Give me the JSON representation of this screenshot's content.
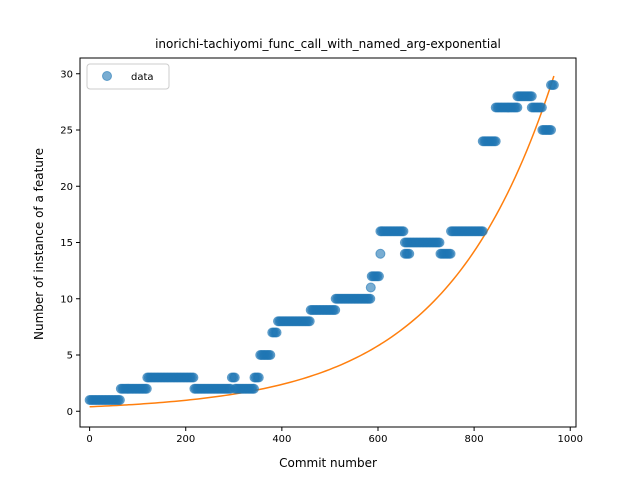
{
  "chart_data": {
    "type": "scatter",
    "title": "inorichi-tachiyomi_func_call_with_named_arg-exponential",
    "xlabel": "Commit number",
    "ylabel": "Number of instance of a feature",
    "xlim": [
      -20,
      1012
    ],
    "ylim": [
      -1.4,
      31.4
    ],
    "xticks": [
      0,
      200,
      400,
      600,
      800,
      1000
    ],
    "yticks": [
      0,
      5,
      10,
      15,
      20,
      25,
      30
    ],
    "grid": false,
    "legend": {
      "placement": "top-left",
      "entries": [
        "data"
      ]
    },
    "colors": {
      "data": "#1f77b4",
      "fit": "#ff7f0e"
    },
    "series": [
      {
        "name": "data",
        "kind": "scatter",
        "segments": [
          {
            "x_start": 0,
            "x_end": 65,
            "y": 1
          },
          {
            "x_start": 65,
            "x_end": 120,
            "y": 2
          },
          {
            "x_start": 120,
            "x_end": 218,
            "y": 3
          },
          {
            "x_start": 218,
            "x_end": 295,
            "y": 2
          },
          {
            "x_start": 296,
            "x_end": 302,
            "y": 3
          },
          {
            "x_start": 303,
            "x_end": 342,
            "y": 2
          },
          {
            "x_start": 343,
            "x_end": 352,
            "y": 3
          },
          {
            "x_start": 355,
            "x_end": 377,
            "y": 5
          },
          {
            "x_start": 380,
            "x_end": 390,
            "y": 7
          },
          {
            "x_start": 392,
            "x_end": 460,
            "y": 8
          },
          {
            "x_start": 460,
            "x_end": 512,
            "y": 9
          },
          {
            "x_start": 512,
            "x_end": 585,
            "y": 10
          },
          {
            "x_start": 587,
            "x_end": 602,
            "y": 12
          },
          {
            "x_start": 605,
            "x_end": 655,
            "y": 16
          },
          {
            "x_start": 656,
            "x_end": 665,
            "y": 14
          },
          {
            "x_start": 656,
            "x_end": 730,
            "y": 15
          },
          {
            "x_start": 730,
            "x_end": 752,
            "y": 14
          },
          {
            "x_start": 752,
            "x_end": 818,
            "y": 16
          },
          {
            "x_start": 818,
            "x_end": 845,
            "y": 24
          },
          {
            "x_start": 845,
            "x_end": 890,
            "y": 27
          },
          {
            "x_start": 890,
            "x_end": 920,
            "y": 28
          },
          {
            "x_start": 920,
            "x_end": 942,
            "y": 27
          },
          {
            "x_start": 942,
            "x_end": 960,
            "y": 25
          },
          {
            "x_start": 960,
            "x_end": 966,
            "y": 29
          }
        ],
        "points": [
          {
            "x": 585,
            "y": 11
          },
          {
            "x": 605,
            "y": 14
          }
        ]
      },
      {
        "kind": "line",
        "model": "exponential",
        "x_range": [
          0,
          966
        ],
        "y_at_x_start": 0.4,
        "y_at_x_end": 29.8
      }
    ]
  }
}
